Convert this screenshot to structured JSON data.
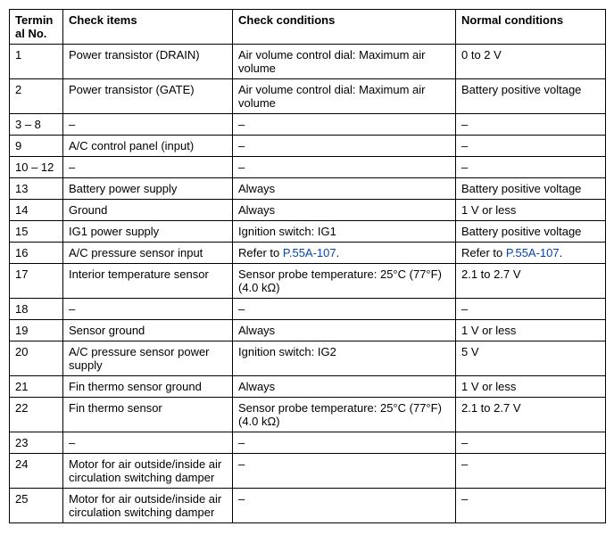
{
  "headers": {
    "terminal": "Terminal No.",
    "check_items": "Check items",
    "check_conditions": "Check conditions",
    "normal_conditions": "Normal conditions"
  },
  "rows": [
    {
      "t": "1",
      "ci": "Power transistor (DRAIN)",
      "cc": "Air volume control dial: Maximum air volume",
      "nc": "0 to 2 V"
    },
    {
      "t": "2",
      "ci": "Power transistor (GATE)",
      "cc": "Air volume control dial: Maximum air volume",
      "nc": "Battery positive voltage"
    },
    {
      "t": "3 – 8",
      "ci": "–",
      "cc": "–",
      "nc": "–"
    },
    {
      "t": "9",
      "ci": "A/C control panel (input)",
      "cc": "–",
      "nc": "–"
    },
    {
      "t": "10 – 12",
      "ci": "–",
      "cc": "–",
      "nc": "–"
    },
    {
      "t": "13",
      "ci": "Battery power supply",
      "cc": " Always",
      "nc": "Battery positive voltage"
    },
    {
      "t": "14",
      "ci": "Ground",
      "cc": " Always",
      "nc": "1 V or less"
    },
    {
      "t": "15",
      "ci": "IG1 power supply",
      "cc": "Ignition switch: IG1",
      "nc": "Battery positive voltage"
    },
    {
      "t": "16",
      "ci": "A/C pressure sensor input",
      "cc_pre": "Refer to ",
      "cc_link": "P.55A-107",
      "cc_post": ".",
      "nc_pre": "Refer to ",
      "nc_link": "P.55A-107",
      "nc_post": "."
    },
    {
      "t": "17",
      "ci": "Interior temperature sensor",
      "cc": "Sensor probe temperature: 25°C (77°F) (4.0 kΩ)",
      "nc": "2.1 to 2.7 V"
    },
    {
      "t": "18",
      "ci": "–",
      "cc": "–",
      "nc": "–"
    },
    {
      "t": "19",
      "ci": "Sensor ground",
      "cc": "Always",
      "nc": "1 V or less"
    },
    {
      "t": "20",
      "ci": "A/C pressure sensor power supply",
      "cc": "Ignition switch: IG2",
      "nc": "5 V"
    },
    {
      "t": "21",
      "ci": "Fin thermo sensor ground",
      "cc": "Always",
      "nc": "1 V or less"
    },
    {
      "t": "22",
      "ci": "Fin thermo sensor",
      "cc": "Sensor probe temperature: 25°C (77°F) (4.0 kΩ)",
      "nc": "2.1 to 2.7 V"
    },
    {
      "t": "23",
      "ci": "–",
      "cc": "–",
      "nc": "–"
    },
    {
      "t": "24",
      "ci": "Motor for air outside/inside air circulation switching damper",
      "cc": "–",
      "nc": "–"
    },
    {
      "t": "25",
      "ci": "Motor for air outside/inside air circulation switching damper",
      "cc": "–",
      "nc": "–"
    }
  ]
}
